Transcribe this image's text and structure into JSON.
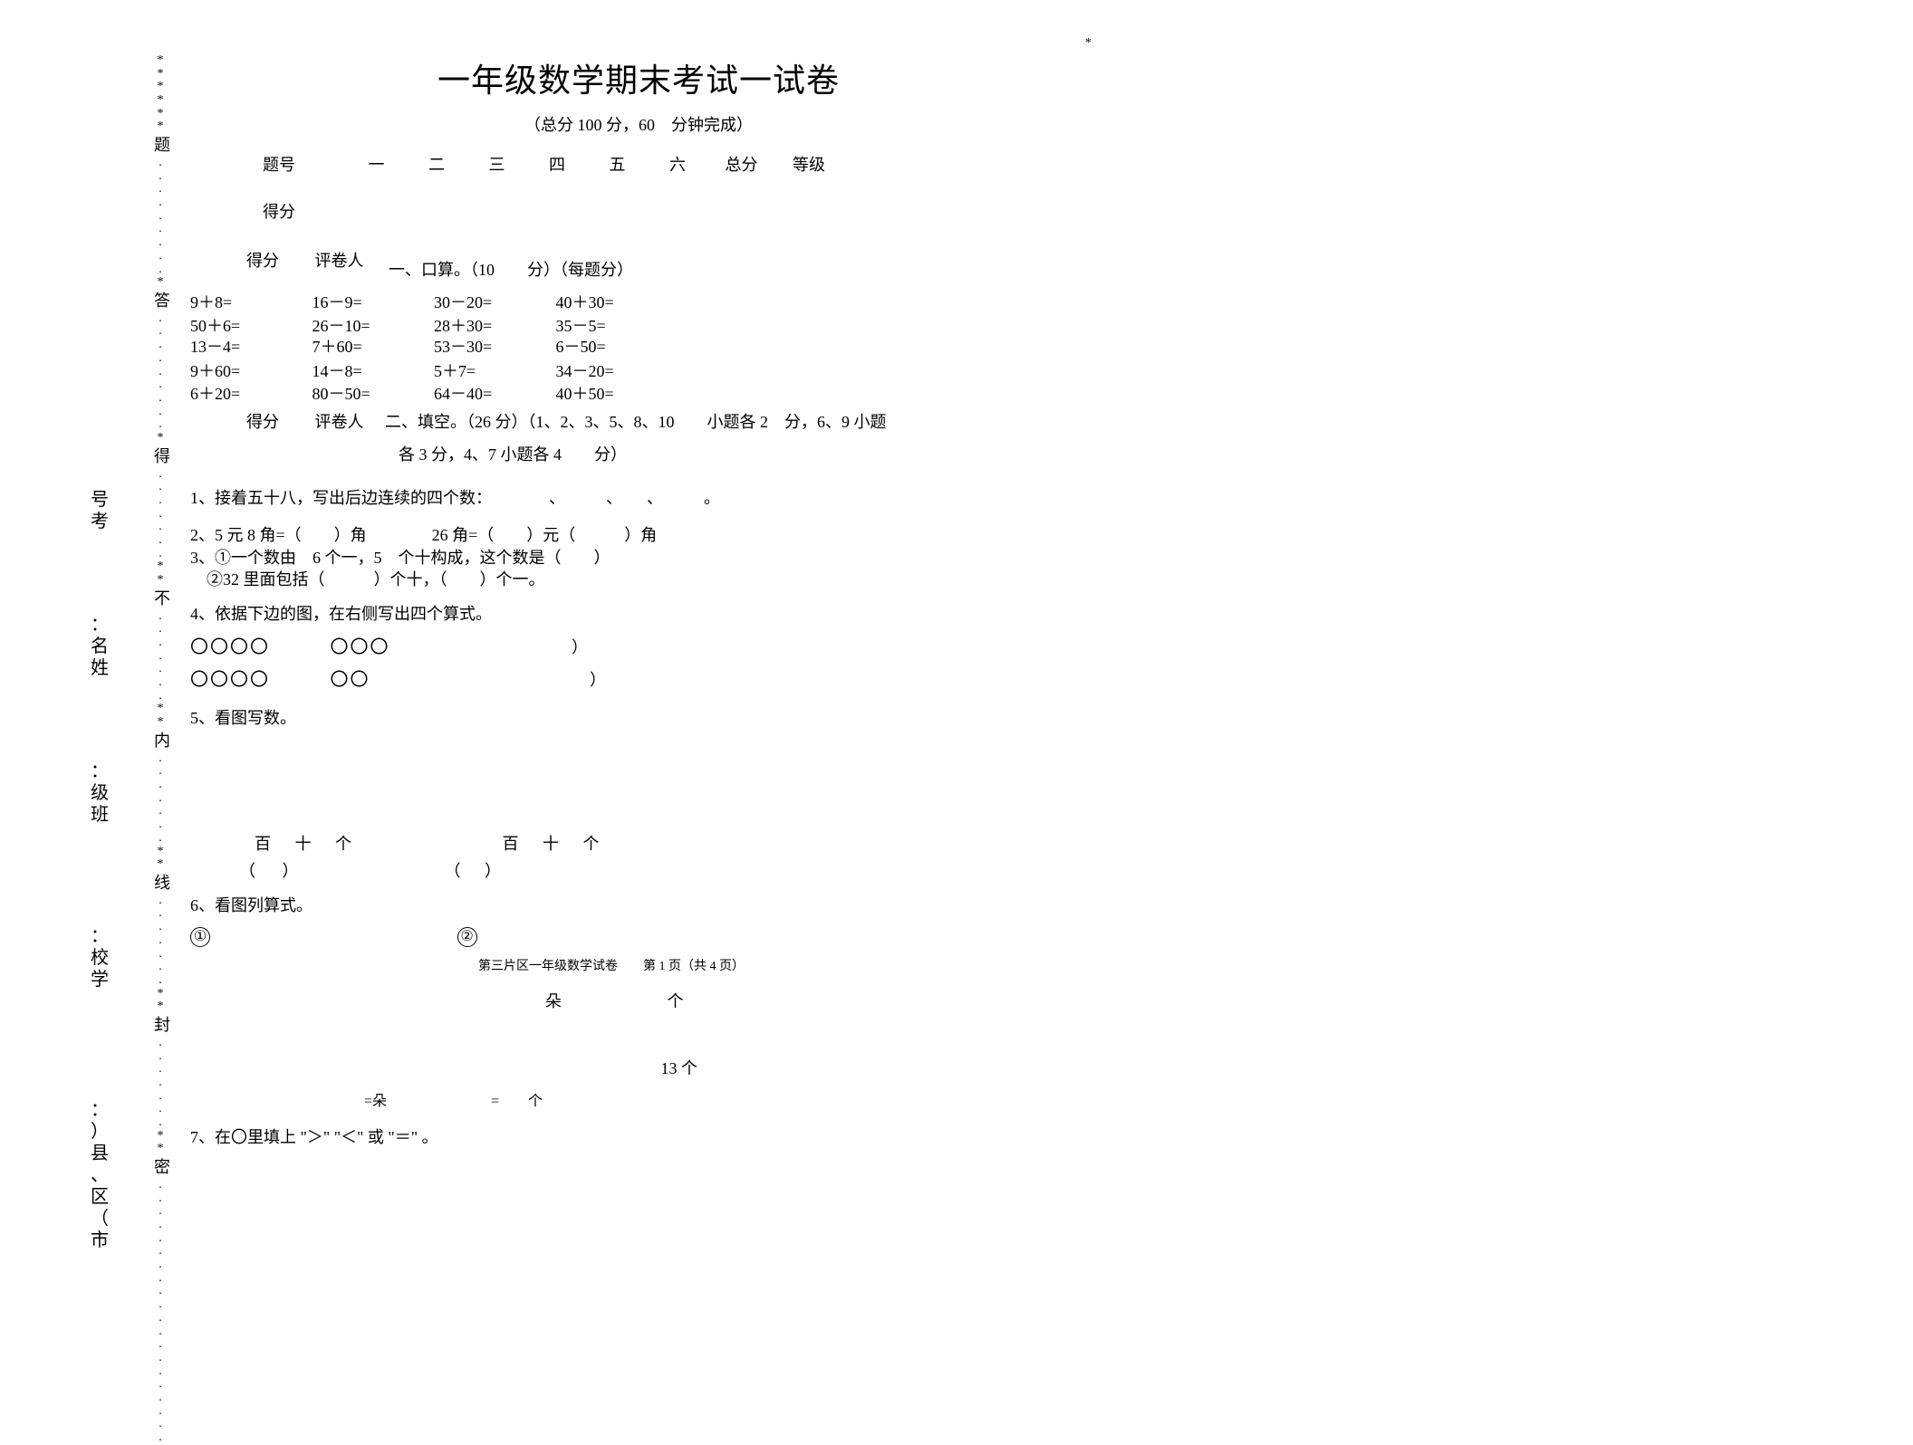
{
  "colors": {
    "bg": "#ffffff",
    "text": "#000000"
  },
  "asterisk_top": "*",
  "left_labels": {
    "kaohao": "考号：",
    "xingming": "姓名：",
    "banji": "班级：",
    "xuexiao": "学校：",
    "shixian": "市（区、县）："
  },
  "dotted_line": {
    "dot": "*",
    "small_dot": ".",
    "chars": [
      "题",
      "答",
      "得",
      "不",
      "内",
      "线",
      "封",
      "密"
    ]
  },
  "title": "一年级数学期末考试一试卷",
  "subtitle": "（总分 100 分，60　分钟完成）",
  "score_header": {
    "label": "题号",
    "cols": [
      "一",
      "二",
      "三",
      "四",
      "五",
      "六",
      "总分",
      "等级"
    ]
  },
  "score_row_label": "得分",
  "scorer_box": {
    "left": "得分",
    "right": "评卷人"
  },
  "section1": {
    "header": "一、口算。（10　　分）（每题分）",
    "rows": [
      [
        "9＋8=",
        "16－9=",
        "30－20=",
        "40＋30="
      ],
      [
        "50＋6=",
        "26－10=",
        "28＋30=",
        "35－5="
      ],
      [
        "13－4=",
        "7＋60=",
        "53－30=",
        "6－50="
      ],
      [
        "9＋60=",
        "14－8=",
        "5＋7=",
        "34－20="
      ],
      [
        "6＋20=",
        "80－50=",
        "64－40=",
        "40＋50="
      ]
    ]
  },
  "section2": {
    "header_line1": "二、填空。（26 分）（1、2、3、5、8、10　　小题各 2　分，6、9 小题",
    "header_line2": "各 3 分，4、7 小题各 4　　分）",
    "q1": "1、接着五十八，写出后边连续的四个数：　　　　、　　　、　　、　　　。",
    "q2": "2、5 元 8 角=（　　）角　　　　26 角=（　　）元（　　　）角",
    "q3a": "3、①一个数由　6 个一，5　个十构成，这个数是（　　）",
    "q3b": "　②32 里面包括（　　　）个十，（　　）个一。",
    "q4": "4、依据下边的图，在右侧写出四个算式。",
    "q4_circles": {
      "block1": "〇〇〇〇",
      "block2_top": "〇〇〇",
      "block2_bot": "〇〇",
      "paren": "）"
    },
    "q5": "5、看图写数。",
    "q5_place": {
      "bai": "百",
      "shi": "十",
      "ge": "个",
      "lparen": "（",
      "rparen": "）"
    },
    "q6": "6、看图列算式。",
    "q6_num1": "①",
    "q6_num2": "②",
    "q6_footer": "第三片区一年级数学试卷　　第 1 页（共 4 页）",
    "q6_duo": "朵",
    "q6_ge": "个",
    "q6_13ge": "13 个",
    "q6_eq1": "=朵",
    "q6_eq2": "=　　个",
    "q7": "7、在〇里填上 \"＞\" \"＜\" 或 \"＝\" 。"
  }
}
